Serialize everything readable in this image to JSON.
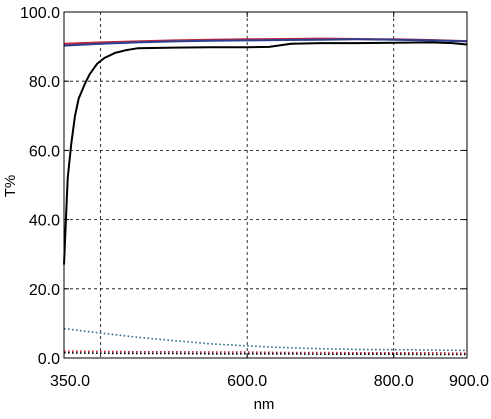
{
  "chart_data": {
    "type": "line",
    "title": "",
    "xlabel": "nm",
    "ylabel": "T%",
    "xlim": [
      350,
      900
    ],
    "ylim": [
      0,
      100
    ],
    "x_ticks": [
      {
        "value": 350,
        "label": "350.0"
      },
      {
        "value": 600,
        "label": "600.0"
      },
      {
        "value": 800,
        "label": "800.0"
      },
      {
        "value": 900,
        "label": "900.0"
      }
    ],
    "x_grid": [
      400,
      600,
      800
    ],
    "y_ticks": [
      {
        "value": 0,
        "label": "0.0"
      },
      {
        "value": 20,
        "label": "20.0"
      },
      {
        "value": 40,
        "label": "40.0"
      },
      {
        "value": 60,
        "label": "60.0"
      },
      {
        "value": 80,
        "label": "80.0"
      },
      {
        "value": 100,
        "label": "100.0"
      }
    ],
    "grid": true,
    "grid_style": "dashed",
    "legend": "none",
    "series": [
      {
        "color": "#c0283c",
        "style": "solid",
        "points": [
          [
            350,
            90.8
          ],
          [
            400,
            91.2
          ],
          [
            450,
            91.5
          ],
          [
            500,
            91.8
          ],
          [
            550,
            92.0
          ],
          [
            600,
            92.1
          ],
          [
            650,
            92.2
          ],
          [
            700,
            92.3
          ],
          [
            750,
            92.2
          ],
          [
            800,
            92.1
          ],
          [
            850,
            91.9
          ],
          [
            900,
            91.6
          ]
        ]
      },
      {
        "color": "#2a3f8f",
        "style": "solid",
        "points": [
          [
            350,
            90.3
          ],
          [
            400,
            90.8
          ],
          [
            450,
            91.2
          ],
          [
            500,
            91.5
          ],
          [
            550,
            91.7
          ],
          [
            600,
            91.8
          ],
          [
            650,
            91.9
          ],
          [
            700,
            92.0
          ],
          [
            750,
            92.1
          ],
          [
            800,
            92.0
          ],
          [
            850,
            91.8
          ],
          [
            900,
            91.5
          ]
        ]
      },
      {
        "color": "#000000",
        "style": "solid",
        "points": [
          [
            350,
            27
          ],
          [
            355,
            52
          ],
          [
            360,
            62
          ],
          [
            365,
            70
          ],
          [
            370,
            75
          ],
          [
            378,
            79
          ],
          [
            385,
            82
          ],
          [
            395,
            85
          ],
          [
            405,
            86.7
          ],
          [
            420,
            88.2
          ],
          [
            435,
            89.0
          ],
          [
            450,
            89.5
          ],
          [
            500,
            89.7
          ],
          [
            550,
            89.8
          ],
          [
            600,
            89.8
          ],
          [
            630,
            89.9
          ],
          [
            660,
            90.8
          ],
          [
            700,
            91.0
          ],
          [
            750,
            91.0
          ],
          [
            800,
            91.1
          ],
          [
            850,
            91.2
          ],
          [
            880,
            91.0
          ],
          [
            900,
            90.6
          ]
        ]
      },
      {
        "color": "#2a6f8f",
        "style": "dotted",
        "points": [
          [
            350,
            8.5
          ],
          [
            400,
            7.2
          ],
          [
            450,
            6.0
          ],
          [
            500,
            5.0
          ],
          [
            550,
            4.1
          ],
          [
            600,
            3.5
          ],
          [
            650,
            3.0
          ],
          [
            700,
            2.7
          ],
          [
            750,
            2.5
          ],
          [
            800,
            2.4
          ],
          [
            850,
            2.3
          ],
          [
            900,
            2.2
          ]
        ]
      },
      {
        "color": "#c0283c",
        "style": "dotted",
        "points": [
          [
            350,
            2.0
          ],
          [
            400,
            1.9
          ],
          [
            450,
            1.8
          ],
          [
            500,
            1.8
          ],
          [
            550,
            1.7
          ],
          [
            600,
            1.7
          ],
          [
            650,
            1.6
          ],
          [
            700,
            1.6
          ],
          [
            750,
            1.5
          ],
          [
            800,
            1.5
          ],
          [
            850,
            1.5
          ],
          [
            900,
            1.4
          ]
        ]
      },
      {
        "color": "#000000",
        "style": "dotted",
        "points": [
          [
            350,
            1.5
          ],
          [
            400,
            1.4
          ],
          [
            450,
            1.3
          ],
          [
            500,
            1.3
          ],
          [
            550,
            1.2
          ],
          [
            600,
            1.2
          ],
          [
            650,
            1.2
          ],
          [
            700,
            1.1
          ],
          [
            750,
            1.1
          ],
          [
            800,
            1.1
          ],
          [
            850,
            1.0
          ],
          [
            900,
            1.0
          ]
        ]
      }
    ]
  }
}
